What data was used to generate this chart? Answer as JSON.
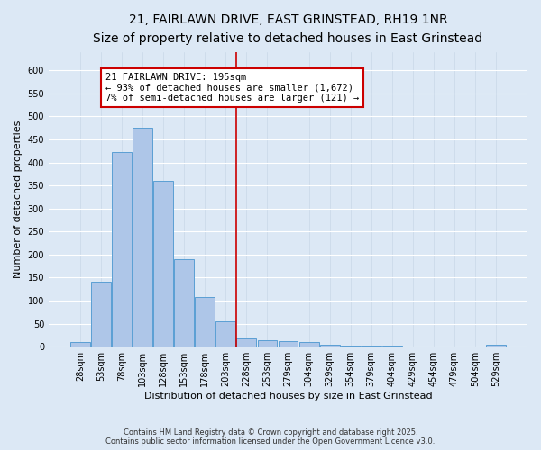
{
  "title_line1": "21, FAIRLAWN DRIVE, EAST GRINSTEAD, RH19 1NR",
  "title_line2": "Size of property relative to detached houses in East Grinstead",
  "xlabel": "Distribution of detached houses by size in East Grinstead",
  "ylabel": "Number of detached properties",
  "categories": [
    "28sqm",
    "53sqm",
    "78sqm",
    "103sqm",
    "128sqm",
    "153sqm",
    "178sqm",
    "203sqm",
    "228sqm",
    "253sqm",
    "279sqm",
    "304sqm",
    "329sqm",
    "354sqm",
    "379sqm",
    "404sqm",
    "429sqm",
    "454sqm",
    "479sqm",
    "504sqm",
    "529sqm"
  ],
  "values": [
    10,
    142,
    422,
    475,
    360,
    190,
    107,
    55,
    18,
    14,
    12,
    10,
    5,
    3,
    2,
    2,
    0,
    0,
    0,
    0,
    5
  ],
  "bar_color": "#aec6e8",
  "bar_edge_color": "#5a9fd4",
  "vline_x": 7.5,
  "vline_color": "#cc0000",
  "annotation_text": "21 FAIRLAWN DRIVE: 195sqm\n← 93% of detached houses are smaller (1,672)\n7% of semi-detached houses are larger (121) →",
  "annotation_box_color": "#ffffff",
  "annotation_box_edge": "#cc0000",
  "ylim": [
    0,
    640
  ],
  "yticks": [
    0,
    50,
    100,
    150,
    200,
    250,
    300,
    350,
    400,
    450,
    500,
    550,
    600
  ],
  "bg_color": "#dce8f5",
  "footer_text": "Contains HM Land Registry data © Crown copyright and database right 2025.\nContains public sector information licensed under the Open Government Licence v3.0.",
  "title_fontsize": 10,
  "subtitle_fontsize": 8.5,
  "tick_fontsize": 7,
  "label_fontsize": 8,
  "annotation_fontsize": 7.5
}
